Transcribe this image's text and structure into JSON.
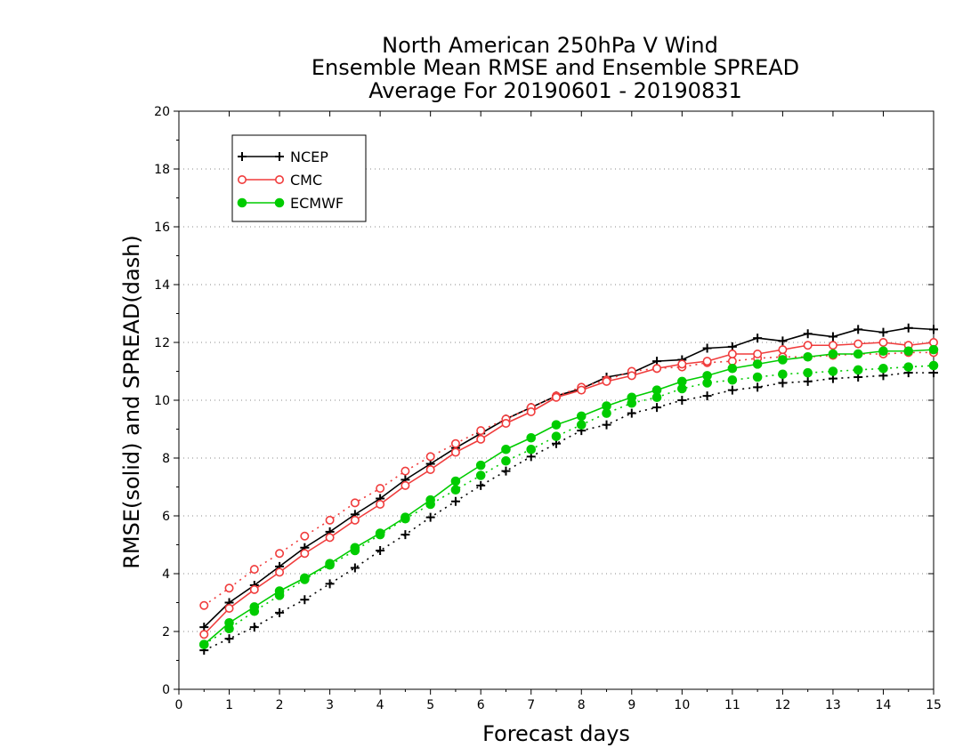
{
  "chart_data": {
    "type": "line",
    "title_lines": [
      "North American 250hPa V Wind",
      "Ensemble Mean RMSE and Ensemble SPREAD",
      "Average For 20190601 - 20190831"
    ],
    "xlabel": "Forecast days",
    "ylabel": "RMSE(solid) and SPREAD(dash)",
    "xlim": [
      0,
      15
    ],
    "ylim": [
      0,
      20
    ],
    "x_ticks": [
      0,
      1,
      2,
      3,
      4,
      5,
      6,
      7,
      8,
      9,
      10,
      11,
      12,
      13,
      14,
      15
    ],
    "y_ticks": [
      0,
      2,
      4,
      6,
      8,
      10,
      12,
      14,
      16,
      18,
      20
    ],
    "grid": "horizontal dotted",
    "legend_placement": "top-left",
    "x": [
      0.5,
      1,
      1.5,
      2,
      2.5,
      3,
      3.5,
      4,
      4.5,
      5,
      5.5,
      6,
      6.5,
      7,
      7.5,
      8,
      8.5,
      9,
      9.5,
      10,
      10.5,
      11,
      11.5,
      12,
      12.5,
      13,
      13.5,
      14,
      14.5,
      15
    ],
    "series": [
      {
        "name": "NCEP",
        "color": "#000000",
        "marker": "plus",
        "rmse": [
          2.15,
          3.0,
          3.6,
          4.25,
          4.9,
          5.45,
          6.05,
          6.6,
          7.25,
          7.8,
          8.35,
          8.85,
          9.35,
          9.75,
          10.15,
          10.4,
          10.8,
          10.95,
          11.35,
          11.4,
          11.8,
          11.85,
          12.15,
          12.05,
          12.3,
          12.2,
          12.45,
          12.35,
          12.5,
          12.45
        ],
        "spread": [
          1.35,
          1.75,
          2.15,
          2.65,
          3.1,
          3.65,
          4.2,
          4.8,
          5.35,
          5.95,
          6.5,
          7.05,
          7.55,
          8.05,
          8.5,
          8.95,
          9.15,
          9.55,
          9.75,
          10.0,
          10.15,
          10.35,
          10.45,
          10.6,
          10.65,
          10.75,
          10.8,
          10.85,
          10.95,
          10.95
        ]
      },
      {
        "name": "CMC",
        "color": "#f03c3c",
        "marker": "open-circle",
        "rmse": [
          1.9,
          2.8,
          3.45,
          4.05,
          4.7,
          5.25,
          5.85,
          6.4,
          7.05,
          7.6,
          8.2,
          8.65,
          9.2,
          9.6,
          10.1,
          10.35,
          10.65,
          10.85,
          11.1,
          11.25,
          11.35,
          11.6,
          11.6,
          11.75,
          11.9,
          11.9,
          11.95,
          12.0,
          11.9,
          12.0
        ],
        "spread": [
          2.9,
          3.5,
          4.15,
          4.7,
          5.3,
          5.85,
          6.45,
          6.95,
          7.55,
          8.05,
          8.5,
          8.95,
          9.35,
          9.75,
          10.15,
          10.45,
          10.7,
          11.0,
          11.1,
          11.15,
          11.3,
          11.35,
          11.45,
          11.5,
          11.5,
          11.55,
          11.6,
          11.6,
          11.65,
          11.65
        ]
      },
      {
        "name": "ECMWF",
        "color": "#00cc00",
        "marker": "filled-circle",
        "rmse": [
          1.55,
          2.3,
          2.85,
          3.4,
          3.85,
          4.35,
          4.9,
          5.4,
          5.95,
          6.55,
          7.2,
          7.75,
          8.3,
          8.7,
          9.15,
          9.45,
          9.8,
          10.1,
          10.35,
          10.65,
          10.85,
          11.1,
          11.25,
          11.4,
          11.5,
          11.6,
          11.6,
          11.7,
          11.7,
          11.75
        ],
        "spread": [
          1.55,
          2.1,
          2.7,
          3.25,
          3.8,
          4.3,
          4.8,
          5.35,
          5.9,
          6.4,
          6.9,
          7.4,
          7.9,
          8.3,
          8.75,
          9.15,
          9.55,
          9.9,
          10.1,
          10.4,
          10.6,
          10.7,
          10.8,
          10.9,
          10.95,
          11.0,
          11.05,
          11.1,
          11.15,
          11.2
        ]
      }
    ]
  }
}
